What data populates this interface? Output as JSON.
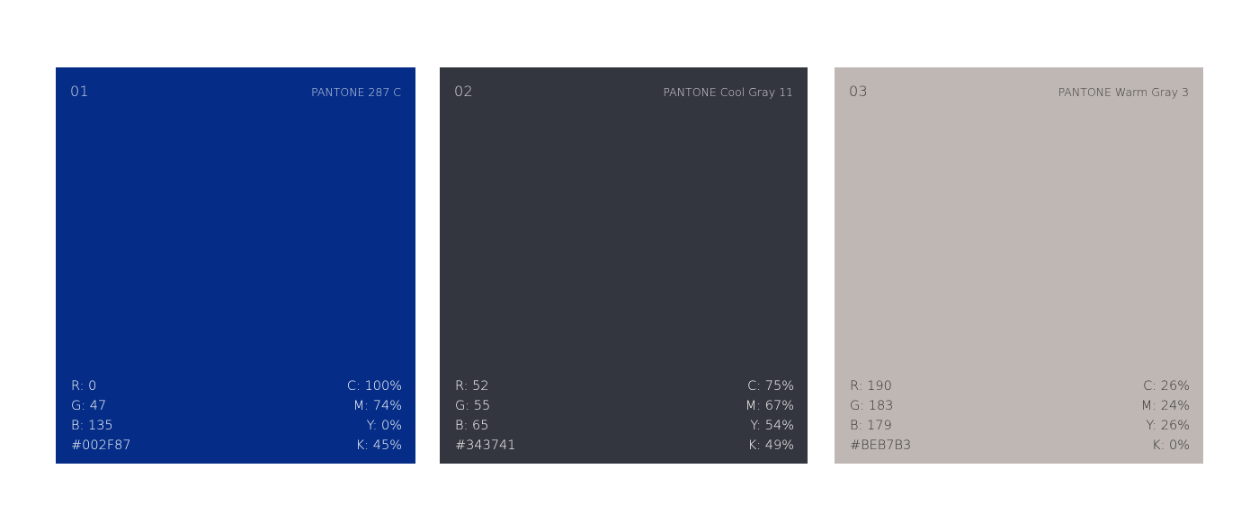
{
  "swatches": [
    {
      "number": "01",
      "pantone": "PANTONE 287 C",
      "color": "#052D87",
      "rgb": [
        "R: 0",
        "G: 47",
        "B: 135",
        "#002F87"
      ],
      "cmyk": [
        "C: 100%",
        "M: 74%",
        "Y: 0%",
        "K: 45%"
      ]
    },
    {
      "number": "02",
      "pantone": "PANTONE Cool Gray 11",
      "color": "#34363F",
      "rgb": [
        "R: 52",
        "G: 55",
        "B: 65",
        "#343741"
      ],
      "cmyk": [
        "C: 75%",
        "M: 67%",
        "Y: 54%",
        "K: 49%"
      ]
    },
    {
      "number": "03",
      "pantone": "PANTONE Warm Gray 3",
      "color": "#BEB7B3",
      "rgb": [
        "R: 190",
        "G: 183",
        "B: 179",
        "#BEB7B3"
      ],
      "cmyk": [
        "C: 26%",
        "M: 24%",
        "Y: 26%",
        "K: 0%"
      ]
    }
  ]
}
